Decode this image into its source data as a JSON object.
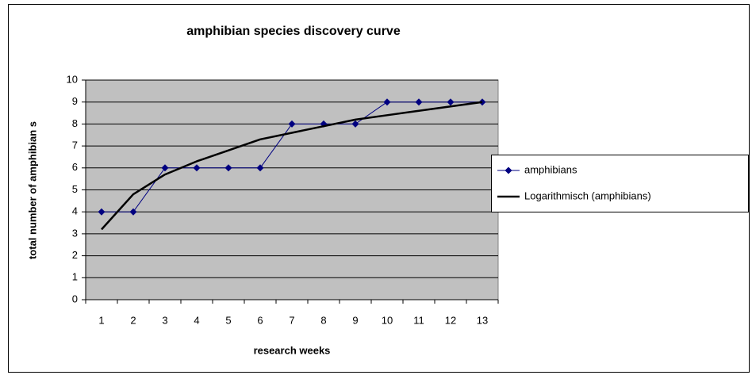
{
  "chart_data": {
    "type": "line",
    "title": "amphibian species discovery curve",
    "x_label": "research weeks",
    "y_label": "total number of amphibian s",
    "categories": [
      "1",
      "2",
      "3",
      "4",
      "5",
      "6",
      "7",
      "8",
      "9",
      "10",
      "11",
      "12",
      "13"
    ],
    "series": [
      {
        "name": "amphibians",
        "color": "#000080",
        "marker": "diamond",
        "values": [
          4,
          4,
          6,
          6,
          6,
          6,
          8,
          8,
          8,
          9,
          9,
          9,
          9
        ]
      },
      {
        "name": "Logarithmisch (amphibians)",
        "color": "#000000",
        "values": [
          3.2,
          4.8,
          5.7,
          6.3,
          6.8,
          7.3,
          7.6,
          7.9,
          8.2,
          8.4,
          8.6,
          8.8,
          9.0
        ]
      }
    ],
    "ylim": [
      0,
      10
    ],
    "yticks": [
      0,
      1,
      2,
      3,
      4,
      5,
      6,
      7,
      8,
      9,
      10
    ],
    "grid": true,
    "legend": "right",
    "plot_background": "#c0c0c0"
  }
}
